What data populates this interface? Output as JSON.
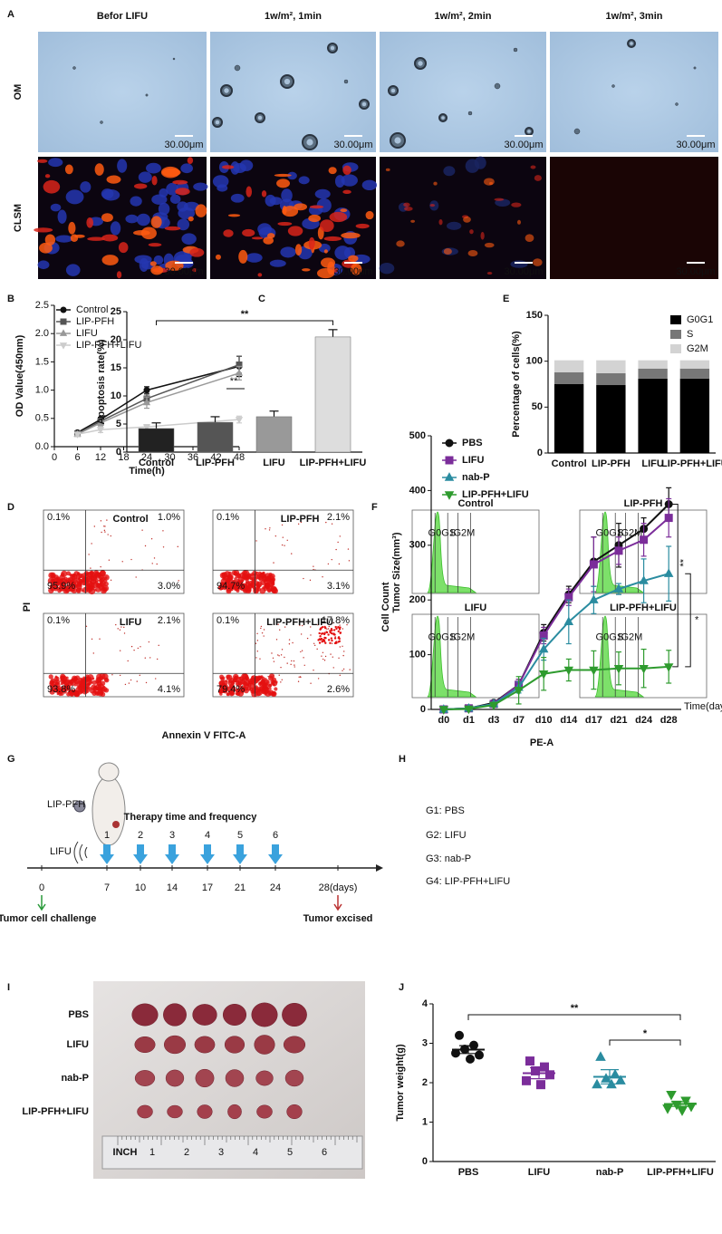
{
  "panel_labels": [
    "A",
    "B",
    "C",
    "D",
    "E",
    "F",
    "G",
    "H",
    "I",
    "J"
  ],
  "panel_a": {
    "columns": [
      "Befor LIFU",
      "1w/m², 1min",
      "1w/m², 2min",
      "1w/m², 3min"
    ],
    "rows": [
      "OM",
      "CLSM"
    ],
    "scale_bar": "30.00μm"
  },
  "panel_d": {
    "plots": [
      {
        "title": "Control",
        "quadrants": [
          "0.1%",
          "1.0%",
          "95.9%",
          "3.0%"
        ]
      },
      {
        "title": "LIP-PFH",
        "quadrants": [
          "0.1%",
          "2.1%",
          "94.7%",
          "3.1%"
        ]
      },
      {
        "title": "LIFU",
        "quadrants": [
          "0.1%",
          "2.1%",
          "93.8%",
          "4.1%"
        ]
      },
      {
        "title": "LIP-PFH+LIFU",
        "quadrants": [
          "0.1%",
          "17.8%",
          "79.4%",
          "2.6%"
        ]
      }
    ],
    "y_label": "PI",
    "x_label": "Annexin V FITC-A"
  },
  "panel_f": {
    "plots": [
      "Control",
      "LIP-PFH",
      "LIFU",
      "LIP-PFH+LIFU"
    ],
    "gates": [
      "G0G1",
      "S",
      "G2M"
    ],
    "y_label": "Cell Count",
    "x_label": "PE-A"
  },
  "panel_g": {
    "groups": [
      "G1: PBS",
      "G2: LIFU",
      "G3: nab-P",
      "G4: LIP-PFH+LIFU"
    ],
    "therapy_label": "Therapy time and frequency",
    "doses": [
      "1",
      "2",
      "3",
      "4",
      "5",
      "6"
    ],
    "days": [
      "0",
      "7",
      "10",
      "14",
      "17",
      "21",
      "24",
      "28(days)"
    ],
    "start_label": "Tumor cell challenge",
    "end_label": "Tumor excised",
    "agent_labels": [
      "LIP-PFH",
      "LIFU"
    ]
  },
  "panel_i": {
    "rows": [
      "PBS",
      "LIFU",
      "nab-P",
      "LIP-PFH+LIFU"
    ],
    "ruler_unit": "INCH",
    "ruler_marks": [
      "1",
      "2",
      "3",
      "4",
      "5",
      "6"
    ]
  },
  "chart_data": [
    {
      "type": "line",
      "x": [
        6,
        12,
        24,
        48
      ],
      "xlim": [
        0,
        48
      ],
      "xticks": [
        0,
        6,
        12,
        18,
        24,
        30,
        36,
        42,
        48
      ],
      "ylim": [
        0,
        2.5
      ],
      "yticks": [
        {
          "value": 0,
          "label": "0.0"
        },
        0.5,
        {
          "value": 1,
          "label": "1.0"
        },
        1.5,
        {
          "value": 2,
          "label": "2.0"
        },
        2.5
      ],
      "xlabel": "Time(h)",
      "ylabel": "OD Value(450nm)",
      "legend": "upper left",
      "annotations": [
        "**"
      ],
      "series": [
        {
          "name": "Control",
          "color": "#111111",
          "marker": "circle",
          "values": [
            0.25,
            0.48,
            1.0,
            1.42
          ],
          "errors": [
            0.03,
            0.04,
            0.06,
            0.18
          ]
        },
        {
          "name": "LIP-PFH",
          "color": "#555555",
          "marker": "square",
          "values": [
            0.23,
            0.45,
            0.85,
            1.45
          ],
          "errors": [
            0.03,
            0.05,
            0.08,
            0.15
          ]
        },
        {
          "name": "LIFU",
          "color": "#999999",
          "marker": "triangle",
          "values": [
            0.22,
            0.42,
            0.78,
            1.3
          ],
          "errors": [
            0.03,
            0.05,
            0.1,
            0.12
          ]
        },
        {
          "name": "LIP-PFH+LIFU",
          "color": "#cccccc",
          "marker": "triangle-down",
          "values": [
            0.22,
            0.3,
            0.35,
            0.48
          ],
          "errors": [
            0.03,
            0.05,
            0.04,
            0.06
          ]
        }
      ]
    },
    {
      "type": "bar",
      "categories": [
        "Control",
        "LIP-PFH",
        "LIFU",
        "LIP-PFH+LIFU"
      ],
      "values": [
        4.2,
        5.3,
        6.3,
        20.5
      ],
      "errors": [
        1,
        1,
        1,
        1.3
      ],
      "colors": [
        "#222222",
        "#555555",
        "#999999",
        "#dddddd"
      ],
      "ylim": [
        0,
        25
      ],
      "yticks": [
        0,
        5,
        10,
        15,
        20,
        25
      ],
      "ylabel": "Apoptosis rate(%)",
      "annotations": [
        "**"
      ]
    },
    {
      "type": "stacked_bar",
      "categories": [
        "Control",
        "LIP-PFH",
        "LIFU",
        "LIP-PFH+LIFU"
      ],
      "ylim": [
        0,
        150
      ],
      "yticks": [
        0,
        50,
        100,
        150
      ],
      "ylabel": "Percentage of cells(%)",
      "legend": "upper right",
      "series": [
        {
          "name": "G0G1",
          "color": "#000000",
          "values": [
            75,
            74,
            81,
            81
          ]
        },
        {
          "name": "S",
          "color": "#777777",
          "values": [
            13,
            13,
            11,
            11
          ]
        },
        {
          "name": "G2M",
          "color": "#d3d3d3",
          "values": [
            13,
            14,
            9,
            9
          ]
        }
      ]
    },
    {
      "type": "line",
      "categories": [
        "d0",
        "d1",
        "d3",
        "d7",
        "d10",
        "d14",
        "d17",
        "d21",
        "d24",
        "d28"
      ],
      "ylim": [
        0,
        500
      ],
      "yticks": [
        0,
        100,
        200,
        300,
        400,
        500
      ],
      "xlabel": "Time(day)",
      "ylabel": "Tumor Size(mm³)",
      "legend": "upper left",
      "annotations": [
        "**",
        "*"
      ],
      "series": [
        {
          "name": "PBS",
          "color": "#111111",
          "marker": "circle",
          "values": [
            0,
            2,
            12,
            45,
            140,
            210,
            270,
            300,
            330,
            375
          ],
          "errors": [
            0,
            1,
            3,
            10,
            15,
            15,
            45,
            40,
            20,
            30
          ]
        },
        {
          "name": "LIFU",
          "color": "#7b2d9a",
          "marker": "square",
          "values": [
            0,
            2,
            10,
            45,
            135,
            205,
            265,
            290,
            310,
            350
          ],
          "errors": [
            0,
            1,
            3,
            10,
            15,
            15,
            50,
            25,
            30,
            35
          ]
        },
        {
          "name": "nab-P",
          "color": "#2a8ca0",
          "marker": "triangle",
          "values": [
            0,
            2,
            10,
            40,
            110,
            160,
            200,
            220,
            235,
            248
          ],
          "errors": [
            0,
            1,
            3,
            10,
            20,
            40,
            25,
            10,
            40,
            50
          ]
        },
        {
          "name": "LIP-PFH+LIFU",
          "color": "#2e9b2e",
          "marker": "triangle-down",
          "values": [
            0,
            1,
            8,
            35,
            65,
            72,
            72,
            75,
            75,
            78
          ],
          "errors": [
            0,
            1,
            3,
            25,
            30,
            20,
            35,
            30,
            35,
            30
          ]
        }
      ]
    },
    {
      "type": "scatter",
      "categories": [
        "PBS",
        "LIFU",
        "nab-P",
        "LIP-PFH+LIFU"
      ],
      "colors": [
        "#111111",
        "#7b2d9a",
        "#2a8ca0",
        "#2e9b2e"
      ],
      "markers": [
        "circle",
        "square",
        "triangle",
        "triangle-down"
      ],
      "values": [
        [
          3.2,
          2.95,
          2.85,
          2.7,
          2.75,
          2.6
        ],
        [
          2.55,
          2.4,
          2.3,
          2.2,
          2.05,
          1.95
        ],
        [
          2.65,
          2.2,
          2.1,
          2.05,
          1.95,
          1.95
        ],
        [
          1.7,
          1.55,
          1.45,
          1.4,
          1.35,
          1.3
        ]
      ],
      "means": [
        2.84,
        2.24,
        2.15,
        1.46
      ],
      "errors": [
        0.1,
        0.14,
        0.18,
        0.06
      ],
      "ylim": [
        0,
        4
      ],
      "yticks": [
        0,
        1,
        2,
        3,
        4
      ],
      "ylabel": "Tumor weight(g)",
      "annotations": [
        "**",
        "*"
      ]
    }
  ]
}
